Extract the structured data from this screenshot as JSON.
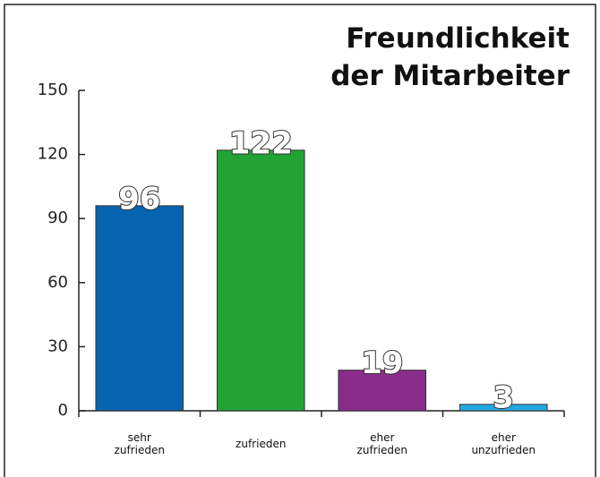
{
  "chart_data": {
    "type": "bar",
    "title": "Freundlichkeit der Mitarbeiter",
    "categories": [
      "sehr zufrieden",
      "zufrieden",
      "eher zufrieden",
      "eher unzufrieden"
    ],
    "values": [
      96,
      122,
      19,
      3
    ],
    "colors": [
      "#0563b0",
      "#22a336",
      "#8a2c8c",
      "#21a9e1"
    ],
    "ylim": [
      0,
      150
    ],
    "yticks": [
      0,
      30,
      60,
      90,
      120,
      150
    ],
    "grid": false
  }
}
